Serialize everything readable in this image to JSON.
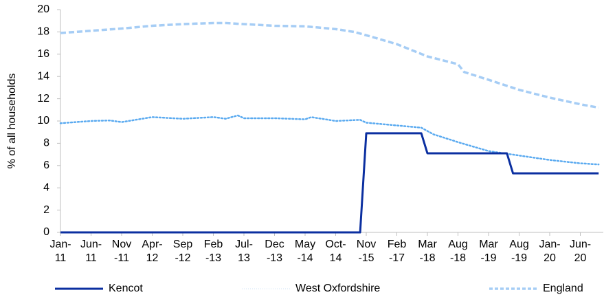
{
  "chart_data": {
    "type": "line",
    "y_label": "% of all households",
    "categories": [
      "Jan-\n11",
      null,
      null,
      null,
      null,
      "Jun-\n11",
      null,
      null,
      null,
      null,
      "Nov\n-11",
      null,
      null,
      null,
      null,
      "Apr-\n12",
      null,
      null,
      null,
      null,
      "Sep\n-12",
      null,
      null,
      null,
      null,
      "Feb\n-13",
      null,
      null,
      null,
      null,
      "Jul-\n13",
      null,
      null,
      null,
      null,
      "Dec\n-13",
      null,
      null,
      null,
      null,
      "May\n-14",
      null,
      null,
      null,
      null,
      "Oct-\n14",
      null,
      null,
      null,
      null,
      "Nov\n-15",
      null,
      null,
      null,
      null,
      "Feb\n-17",
      null,
      null,
      null,
      null,
      "Mar\n-18",
      null,
      null,
      null,
      null,
      "Aug\n-18",
      null,
      null,
      null,
      null,
      "Mar\n-19",
      null,
      null,
      null,
      null,
      "Aug\n-19",
      null,
      null,
      null,
      null,
      "Jan-\n20",
      null,
      null,
      null,
      null,
      "Jun-\n20",
      null,
      null,
      null
    ],
    "series": [
      {
        "name": "Kencot",
        "color": "#0b2fa0",
        "style": "solid",
        "values": [
          0,
          0,
          0,
          0,
          0,
          0,
          0,
          0,
          0,
          0,
          0,
          0,
          0,
          0,
          0,
          0,
          0,
          0,
          0,
          0,
          0,
          0,
          0,
          0,
          0,
          0,
          0,
          0,
          0,
          0,
          0,
          0,
          0,
          0,
          0,
          0,
          0,
          0,
          0,
          0,
          0,
          0,
          0,
          0,
          0,
          0,
          0,
          0,
          0,
          0,
          8.9,
          8.9,
          8.9,
          8.9,
          8.9,
          8.9,
          8.9,
          8.9,
          8.9,
          8.9,
          7.1,
          7.1,
          7.1,
          7.1,
          7.1,
          7.1,
          7.1,
          7.1,
          7.1,
          7.1,
          7.1,
          7.1,
          7.1,
          7.1,
          5.3,
          5.3,
          5.3,
          5.3,
          5.3,
          5.3,
          5.3,
          5.3,
          5.3,
          5.3,
          5.3,
          5.3,
          5.3,
          5.3,
          5.3
        ]
      },
      {
        "name": "West Oxfordshire",
        "color": "#5aaaf0",
        "style": "dotted",
        "values": [
          9.8,
          9.84,
          9.88,
          9.92,
          9.96,
          10.0,
          10.02,
          10.03,
          10.05,
          9.98,
          9.9,
          9.99,
          10.08,
          10.17,
          10.26,
          10.35,
          10.32,
          10.29,
          10.26,
          10.23,
          10.2,
          10.23,
          10.26,
          10.29,
          10.32,
          10.35,
          10.28,
          10.2,
          10.35,
          10.5,
          10.25,
          10.25,
          10.25,
          10.25,
          10.25,
          10.25,
          10.23,
          10.21,
          10.19,
          10.17,
          10.15,
          10.35,
          10.26,
          10.18,
          10.09,
          10.0,
          10.03,
          10.05,
          10.08,
          10.1,
          9.85,
          9.8,
          9.75,
          9.7,
          9.65,
          9.6,
          9.55,
          9.5,
          9.45,
          9.4,
          9.1,
          8.8,
          8.63,
          8.45,
          8.28,
          8.1,
          7.94,
          7.78,
          7.62,
          7.46,
          7.3,
          7.22,
          7.14,
          7.06,
          6.98,
          6.9,
          6.82,
          6.74,
          6.66,
          6.58,
          6.5,
          6.44,
          6.38,
          6.32,
          6.26,
          6.2,
          6.17,
          6.13,
          6.1
        ]
      },
      {
        "name": "England",
        "color": "#a6cdf5",
        "style": "dashed",
        "values": [
          17.9,
          17.94,
          17.98,
          18.02,
          18.06,
          18.1,
          18.14,
          18.18,
          18.22,
          18.26,
          18.3,
          18.35,
          18.4,
          18.45,
          18.5,
          18.55,
          18.58,
          18.61,
          18.64,
          18.67,
          18.7,
          18.72,
          18.74,
          18.76,
          18.78,
          18.8,
          18.8,
          18.8,
          18.77,
          18.73,
          18.7,
          18.67,
          18.64,
          18.61,
          18.58,
          18.55,
          18.54,
          18.53,
          18.52,
          18.51,
          18.5,
          18.45,
          18.4,
          18.35,
          18.3,
          18.25,
          18.17,
          18.08,
          18.0,
          17.85,
          17.7,
          17.54,
          17.38,
          17.22,
          17.06,
          16.9,
          16.68,
          16.46,
          16.24,
          16.02,
          15.8,
          15.66,
          15.52,
          15.38,
          15.24,
          15.1,
          14.4,
          14.22,
          14.05,
          13.87,
          13.7,
          13.52,
          13.34,
          13.16,
          12.98,
          12.8,
          12.66,
          12.52,
          12.38,
          12.24,
          12.1,
          11.98,
          11.86,
          11.74,
          11.62,
          11.5,
          11.4,
          11.3,
          11.2
        ]
      }
    ],
    "ylim": [
      0,
      20
    ],
    "yticks": [
      0,
      2,
      4,
      6,
      8,
      10,
      12,
      14,
      16,
      18,
      20
    ],
    "grid": false,
    "legend": "bottom"
  }
}
